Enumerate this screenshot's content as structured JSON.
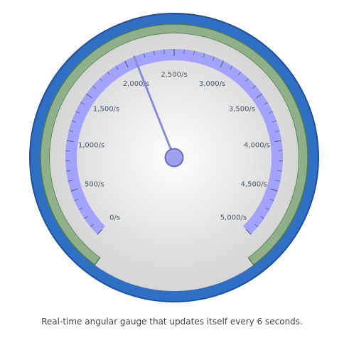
{
  "chart_data": {
    "type": "gauge",
    "min": 0,
    "max": 5000,
    "value": 2100,
    "tick_labels": [
      "0/s",
      "500/s",
      "1,000/s",
      "1,500/s",
      "2,000/s",
      "2,500/s",
      "3,000/s",
      "3,500/s",
      "4,000/s",
      "4,500/s",
      "5,000/s"
    ],
    "tick_values": [
      0,
      500,
      1000,
      1500,
      2000,
      2500,
      3000,
      3500,
      4000,
      4500,
      5000
    ],
    "colors": {
      "outer_ring": "#2f6fc4",
      "outer_ring_edge": "#1f4f9c",
      "inner_band": "#8fb08a",
      "inner_band_edge": "#4d7d47",
      "face": "#e4e4e4",
      "scale_band": "#a3a3ff",
      "tick": "#556070",
      "needle": "#8a8ad6",
      "hub": "#a0a0f0",
      "hub_edge": "#6a6ac0"
    }
  },
  "caption": "Real-time angular gauge that updates itself every 6 seconds."
}
